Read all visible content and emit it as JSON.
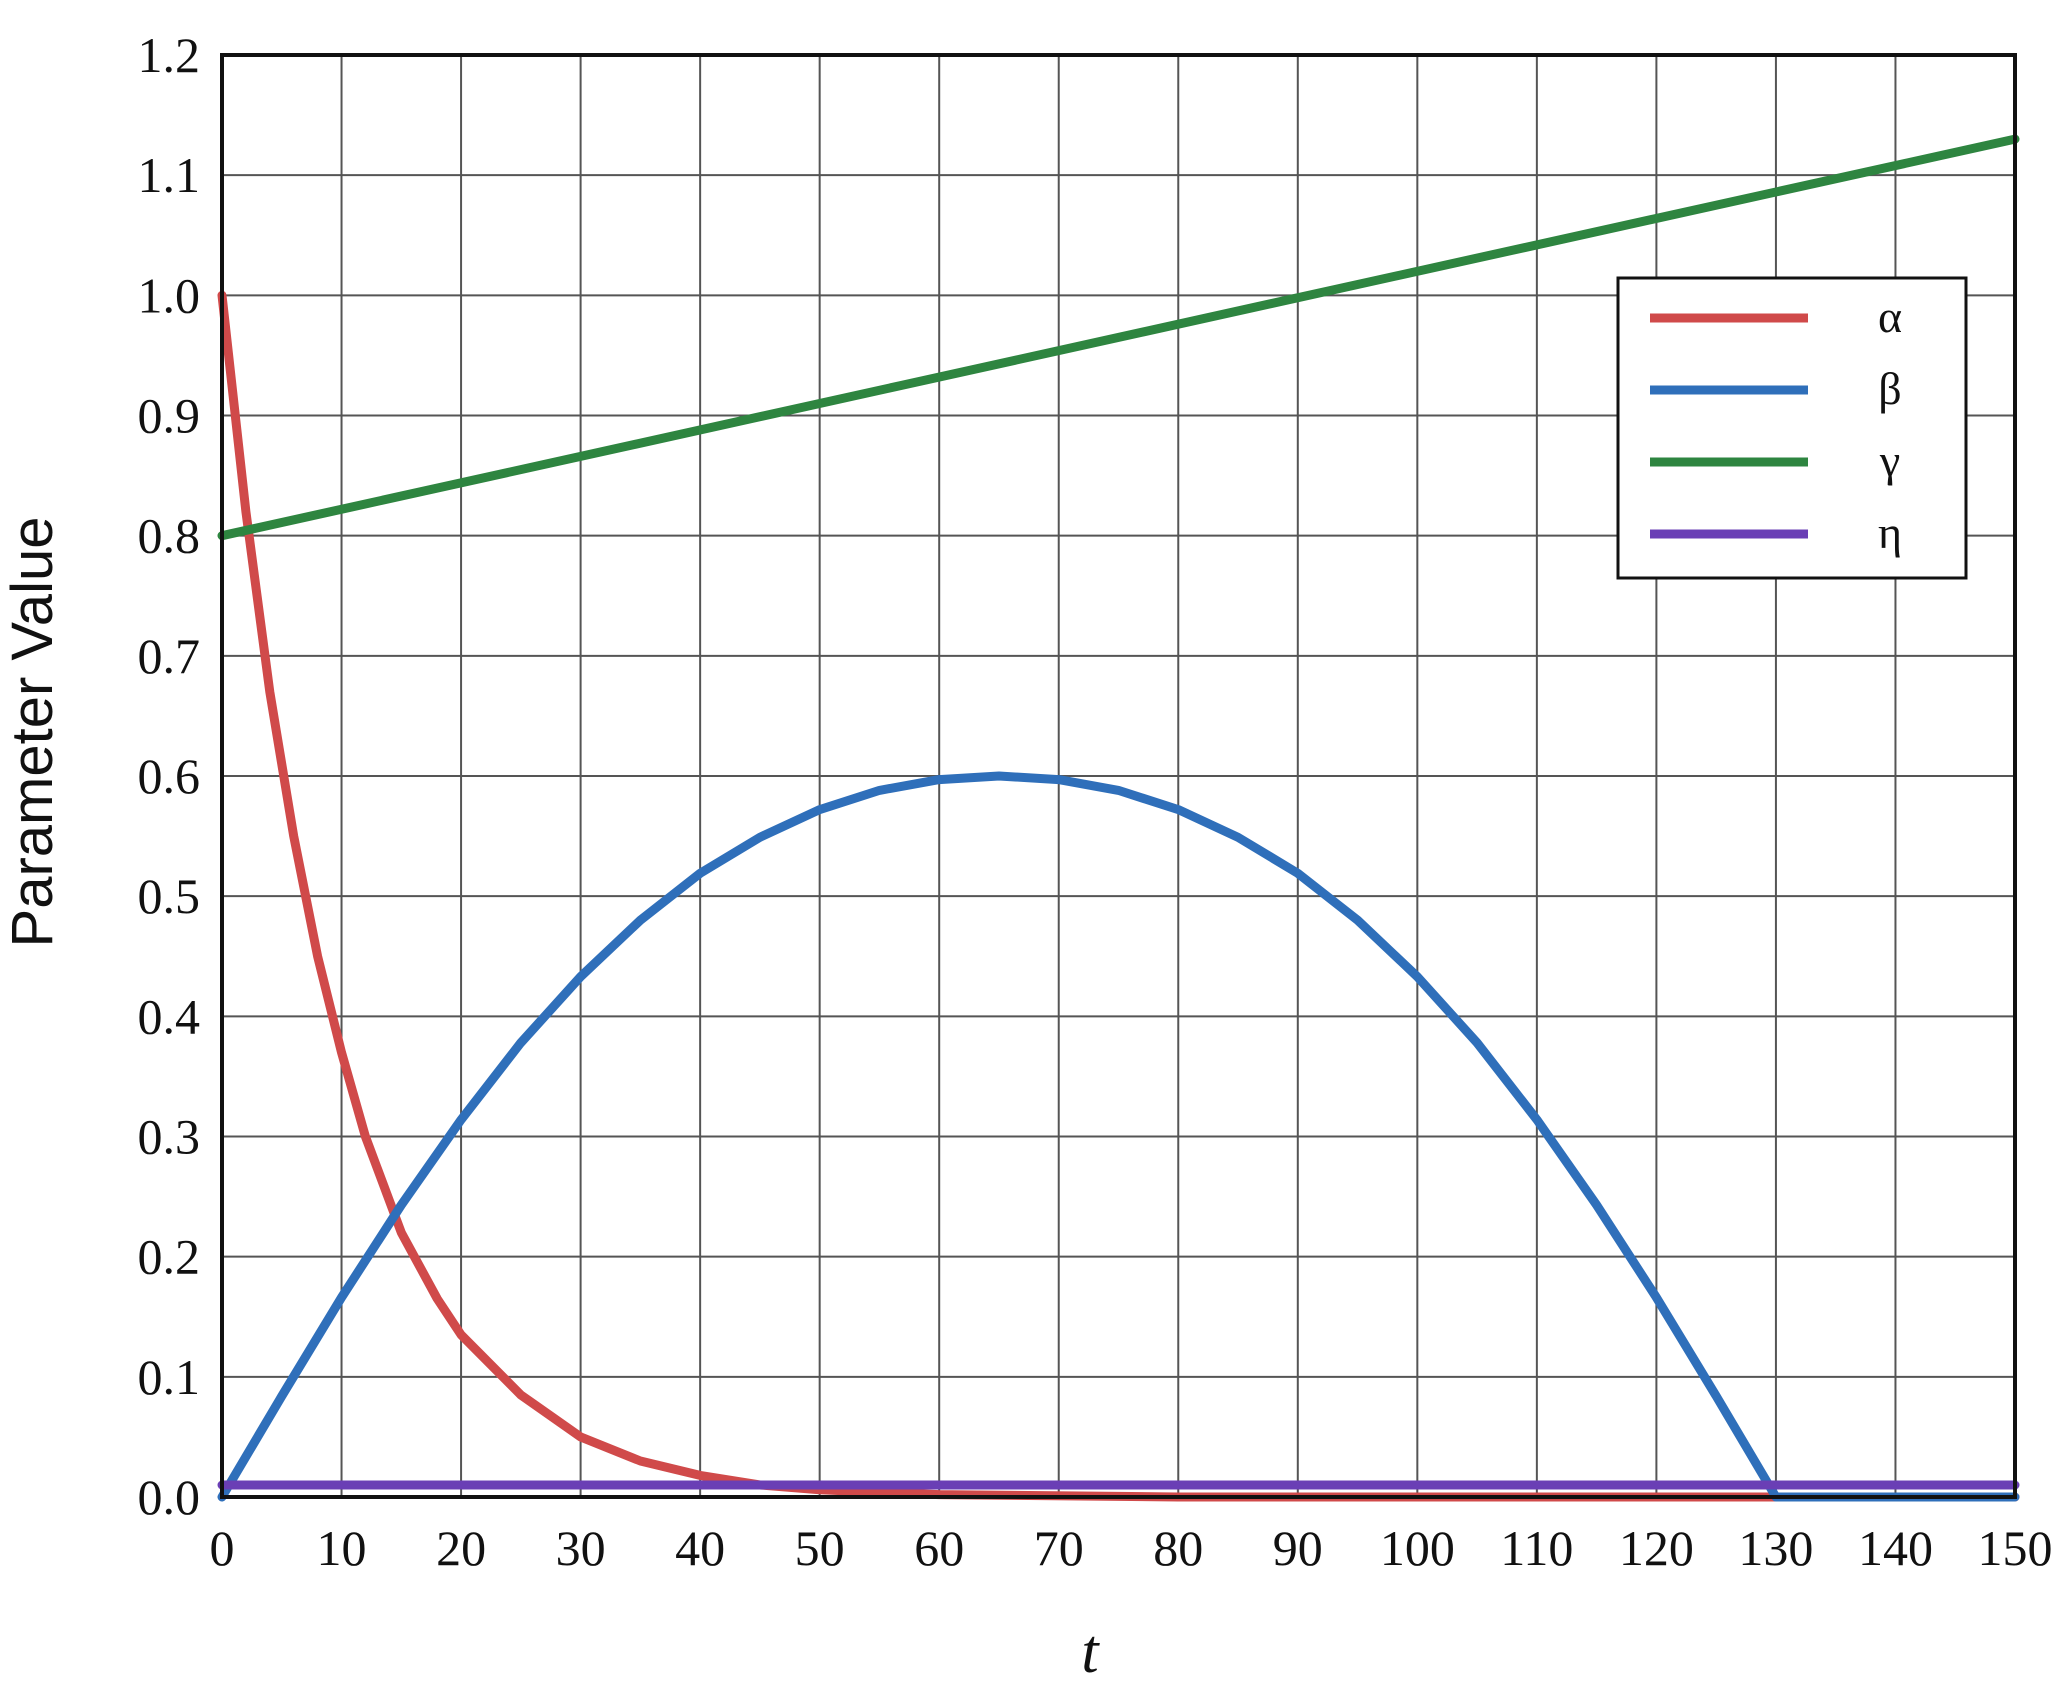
{
  "chart_data": {
    "type": "line",
    "xlabel": "t",
    "ylabel": "Parameter Value",
    "xlim": [
      0,
      150
    ],
    "ylim": [
      0,
      1.2
    ],
    "x_ticks": [
      "0",
      "10",
      "20",
      "30",
      "40",
      "50",
      "60",
      "70",
      "80",
      "90",
      "100",
      "110",
      "120",
      "130",
      "140",
      "150"
    ],
    "y_ticks": [
      "0.0",
      "0.1",
      "0.2",
      "0.3",
      "0.4",
      "0.5",
      "0.6",
      "0.7",
      "0.8",
      "0.9",
      "1.0",
      "1.1",
      "1.2"
    ],
    "grid": true,
    "legend_position": "top-right",
    "series": [
      {
        "name": "α",
        "color": "#d04a4a",
        "x": [
          0,
          2,
          4,
          6,
          8,
          10,
          12,
          15,
          18,
          20,
          25,
          30,
          35,
          40,
          45,
          50,
          60,
          80,
          100,
          150
        ],
        "y": [
          1.0,
          0.82,
          0.67,
          0.55,
          0.45,
          0.37,
          0.3,
          0.22,
          0.165,
          0.135,
          0.085,
          0.05,
          0.03,
          0.018,
          0.01,
          0.006,
          0.002,
          0.0,
          0.0,
          0.0
        ]
      },
      {
        "name": "β",
        "color": "#2f6fba",
        "x": [
          0,
          5,
          10,
          15,
          20,
          25,
          30,
          35,
          40,
          45,
          50,
          55,
          60,
          65,
          70,
          75,
          80,
          85,
          90,
          95,
          100,
          105,
          110,
          115,
          120,
          125,
          130,
          135,
          140,
          145,
          150
        ],
        "y": [
          0.0,
          0.084,
          0.166,
          0.243,
          0.314,
          0.378,
          0.433,
          0.48,
          0.519,
          0.549,
          0.572,
          0.588,
          0.597,
          0.6,
          0.597,
          0.588,
          0.572,
          0.549,
          0.519,
          0.48,
          0.433,
          0.378,
          0.314,
          0.243,
          0.166,
          0.084,
          0.0,
          0.0,
          0.0,
          0.0,
          0.0
        ]
      },
      {
        "name": "γ",
        "color": "#2e8540",
        "x": [
          0,
          150
        ],
        "y": [
          0.8,
          1.13
        ]
      },
      {
        "name": "η",
        "color": "#6a3fb5",
        "x": [
          0,
          150
        ],
        "y": [
          0.01,
          0.01
        ]
      }
    ]
  }
}
